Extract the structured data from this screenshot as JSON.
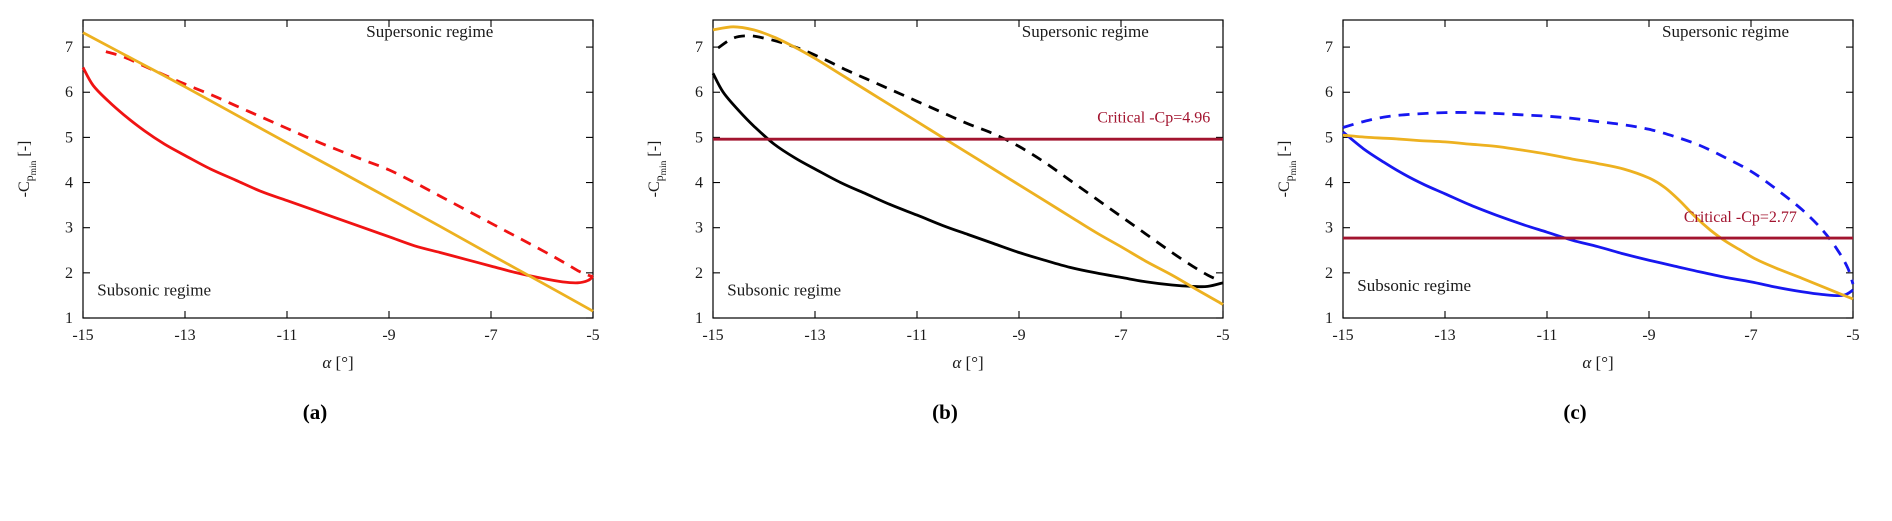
{
  "captions": [
    "(a)",
    "(b)",
    "(c)"
  ],
  "chart_data": [
    {
      "type": "line",
      "panel": "a",
      "xlabel": {
        "variable": "α",
        "unit": " [°]"
      },
      "ylabel": {
        "prefix": "-C",
        "sub": "p",
        "subsub": "min",
        "unit": " [-]"
      },
      "xlim": [
        -15,
        -5
      ],
      "ylim": [
        1,
        7.6
      ],
      "xticks": [
        -15,
        -13,
        -11,
        -9,
        -7,
        -5
      ],
      "yticks": [
        1,
        2,
        3,
        4,
        5,
        6,
        7
      ],
      "annotations": [
        {
          "text": "Supersonic regime",
          "x": -8.2,
          "y": 7.22,
          "anchor": "middle",
          "color": "#1a1a1a"
        },
        {
          "text": "Subsonic regime",
          "x": -14.72,
          "y": 1.5,
          "anchor": "start",
          "color": "#1a1a1a"
        }
      ],
      "critical_line": null,
      "series": [
        {
          "name": "upper-branch-dashed",
          "color": "#F01313",
          "style": "dashed",
          "points": [
            [
              -14.55,
              6.9
            ],
            [
              -14.2,
              6.78
            ],
            [
              -13.8,
              6.58
            ],
            [
              -13.4,
              6.38
            ],
            [
              -13,
              6.18
            ],
            [
              -12.5,
              5.95
            ],
            [
              -12,
              5.7
            ],
            [
              -11.5,
              5.45
            ],
            [
              -11,
              5.2
            ],
            [
              -10.5,
              4.95
            ],
            [
              -10,
              4.72
            ],
            [
              -9.5,
              4.5
            ],
            [
              -9,
              4.28
            ],
            [
              -8.5,
              4.0
            ],
            [
              -8,
              3.7
            ],
            [
              -7.5,
              3.4
            ],
            [
              -7,
              3.1
            ],
            [
              -6.5,
              2.8
            ],
            [
              -6,
              2.5
            ],
            [
              -5.6,
              2.25
            ],
            [
              -5.3,
              2.05
            ],
            [
              -5.1,
              1.95
            ],
            [
              -5,
              1.92
            ]
          ]
        },
        {
          "name": "lower-branch-solid",
          "color": "#F01313",
          "style": "solid",
          "points": [
            [
              -15,
              6.55
            ],
            [
              -14.8,
              6.15
            ],
            [
              -14.5,
              5.8
            ],
            [
              -14.2,
              5.5
            ],
            [
              -13.8,
              5.15
            ],
            [
              -13.4,
              4.85
            ],
            [
              -13,
              4.6
            ],
            [
              -12.5,
              4.3
            ],
            [
              -12,
              4.05
            ],
            [
              -11.5,
              3.8
            ],
            [
              -11,
              3.6
            ],
            [
              -10.5,
              3.4
            ],
            [
              -10,
              3.2
            ],
            [
              -9.5,
              3.0
            ],
            [
              -9,
              2.8
            ],
            [
              -8.5,
              2.6
            ],
            [
              -8,
              2.45
            ],
            [
              -7.5,
              2.3
            ],
            [
              -7,
              2.15
            ],
            [
              -6.5,
              2.0
            ],
            [
              -6,
              1.88
            ],
            [
              -5.6,
              1.8
            ],
            [
              -5.3,
              1.78
            ],
            [
              -5.1,
              1.83
            ],
            [
              -5,
              1.92
            ]
          ]
        },
        {
          "name": "reference-line",
          "color": "#EDB120",
          "style": "solid",
          "points": [
            [
              -15,
              7.32
            ],
            [
              -14,
              6.72
            ],
            [
              -13,
              6.12
            ],
            [
              -12,
              5.5
            ],
            [
              -11,
              4.88
            ],
            [
              -10,
              4.27
            ],
            [
              -9,
              3.65
            ],
            [
              -8,
              3.03
            ],
            [
              -7,
              2.4
            ],
            [
              -6,
              1.78
            ],
            [
              -5,
              1.15
            ]
          ]
        }
      ]
    },
    {
      "type": "line",
      "panel": "b",
      "xlabel": {
        "variable": "α",
        "unit": " [°]"
      },
      "ylabel": {
        "prefix": "-C",
        "sub": "p",
        "subsub": "min",
        "unit": " [-]"
      },
      "xlim": [
        -15,
        -5
      ],
      "ylim": [
        1,
        7.6
      ],
      "xticks": [
        -15,
        -13,
        -11,
        -9,
        -7,
        -5
      ],
      "yticks": [
        1,
        2,
        3,
        4,
        5,
        6,
        7
      ],
      "annotations": [
        {
          "text": "Supersonic regime",
          "x": -7.7,
          "y": 7.22,
          "anchor": "middle",
          "color": "#1a1a1a"
        },
        {
          "text": "Subsonic regime",
          "x": -14.72,
          "y": 1.5,
          "anchor": "start",
          "color": "#1a1a1a"
        }
      ],
      "critical_line": {
        "value": 4.96,
        "label": "Critical -Cp=4.96",
        "color": "#A2142F",
        "label_x": -5.25,
        "label_y": 5.33,
        "label_anchor": "end"
      },
      "series": [
        {
          "name": "upper-branch-dashed",
          "color": "#000000",
          "style": "dashed",
          "points": [
            [
              -14.9,
              6.98
            ],
            [
              -14.6,
              7.2
            ],
            [
              -14.3,
              7.25
            ],
            [
              -14,
              7.2
            ],
            [
              -13.6,
              7.08
            ],
            [
              -13.2,
              6.92
            ],
            [
              -12.8,
              6.72
            ],
            [
              -12.4,
              6.5
            ],
            [
              -12,
              6.3
            ],
            [
              -11.5,
              6.05
            ],
            [
              -11,
              5.8
            ],
            [
              -10.5,
              5.55
            ],
            [
              -10,
              5.3
            ],
            [
              -9.5,
              5.08
            ],
            [
              -9,
              4.8
            ],
            [
              -8.5,
              4.45
            ],
            [
              -8,
              4.05
            ],
            [
              -7.5,
              3.65
            ],
            [
              -7,
              3.25
            ],
            [
              -6.5,
              2.85
            ],
            [
              -6,
              2.45
            ],
            [
              -5.6,
              2.15
            ],
            [
              -5.3,
              1.95
            ],
            [
              -5.05,
              1.82
            ]
          ]
        },
        {
          "name": "lower-branch-solid",
          "color": "#000000",
          "style": "solid",
          "points": [
            [
              -15,
              6.42
            ],
            [
              -14.8,
              6.0
            ],
            [
              -14.5,
              5.6
            ],
            [
              -14.2,
              5.25
            ],
            [
              -13.8,
              4.85
            ],
            [
              -13.4,
              4.55
            ],
            [
              -13,
              4.3
            ],
            [
              -12.5,
              4.0
            ],
            [
              -12,
              3.75
            ],
            [
              -11.5,
              3.5
            ],
            [
              -11,
              3.28
            ],
            [
              -10.5,
              3.05
            ],
            [
              -10,
              2.85
            ],
            [
              -9.5,
              2.65
            ],
            [
              -9,
              2.45
            ],
            [
              -8.5,
              2.28
            ],
            [
              -8,
              2.12
            ],
            [
              -7.5,
              2.0
            ],
            [
              -7,
              1.9
            ],
            [
              -6.5,
              1.8
            ],
            [
              -6,
              1.73
            ],
            [
              -5.6,
              1.7
            ],
            [
              -5.3,
              1.7
            ],
            [
              -5,
              1.78
            ]
          ]
        },
        {
          "name": "reference-line",
          "color": "#EDB120",
          "style": "solid",
          "points": [
            [
              -15,
              7.38
            ],
            [
              -14.6,
              7.45
            ],
            [
              -14.2,
              7.38
            ],
            [
              -13.8,
              7.22
            ],
            [
              -13.4,
              7.0
            ],
            [
              -13,
              6.75
            ],
            [
              -12.5,
              6.4
            ],
            [
              -12,
              6.05
            ],
            [
              -11.5,
              5.7
            ],
            [
              -11,
              5.35
            ],
            [
              -10.5,
              5.0
            ],
            [
              -10,
              4.65
            ],
            [
              -9.5,
              4.3
            ],
            [
              -9,
              3.95
            ],
            [
              -8.5,
              3.6
            ],
            [
              -8,
              3.25
            ],
            [
              -7.5,
              2.9
            ],
            [
              -7,
              2.58
            ],
            [
              -6.5,
              2.25
            ],
            [
              -6,
              1.95
            ],
            [
              -5.5,
              1.62
            ],
            [
              -5,
              1.3
            ]
          ]
        }
      ]
    },
    {
      "type": "line",
      "panel": "c",
      "xlabel": {
        "variable": "α",
        "unit": " [°]"
      },
      "ylabel": {
        "prefix": "-C",
        "sub": "p",
        "subsub": "min",
        "unit": " [-]"
      },
      "xlim": [
        -15,
        -5
      ],
      "ylim": [
        1,
        7.6
      ],
      "xticks": [
        -15,
        -13,
        -11,
        -9,
        -7,
        -5
      ],
      "yticks": [
        1,
        2,
        3,
        4,
        5,
        6,
        7
      ],
      "annotations": [
        {
          "text": "Supersonic regime",
          "x": -7.5,
          "y": 7.22,
          "anchor": "middle",
          "color": "#1a1a1a"
        },
        {
          "text": "Subsonic regime",
          "x": -14.72,
          "y": 1.6,
          "anchor": "start",
          "color": "#1a1a1a"
        }
      ],
      "critical_line": {
        "value": 2.77,
        "label": "Critical -Cp=2.77",
        "color": "#A2142F",
        "label_x": -6.1,
        "label_y": 3.13,
        "label_anchor": "end"
      },
      "series": [
        {
          "name": "upper-branch-dashed",
          "color": "#1717F0",
          "style": "dashed",
          "points": [
            [
              -15,
              5.22
            ],
            [
              -14.6,
              5.35
            ],
            [
              -14.2,
              5.45
            ],
            [
              -13.8,
              5.5
            ],
            [
              -13.4,
              5.53
            ],
            [
              -13,
              5.55
            ],
            [
              -12.5,
              5.55
            ],
            [
              -12,
              5.53
            ],
            [
              -11.5,
              5.5
            ],
            [
              -11,
              5.47
            ],
            [
              -10.5,
              5.42
            ],
            [
              -10,
              5.35
            ],
            [
              -9.5,
              5.28
            ],
            [
              -9,
              5.18
            ],
            [
              -8.5,
              5.02
            ],
            [
              -8,
              4.82
            ],
            [
              -7.5,
              4.55
            ],
            [
              -7,
              4.25
            ],
            [
              -6.5,
              3.85
            ],
            [
              -6,
              3.4
            ],
            [
              -5.6,
              2.95
            ],
            [
              -5.3,
              2.5
            ],
            [
              -5.1,
              2.1
            ],
            [
              -5,
              1.75
            ]
          ]
        },
        {
          "name": "lower-branch-solid",
          "color": "#1717F0",
          "style": "solid",
          "points": [
            [
              -15,
              5.12
            ],
            [
              -14.6,
              4.75
            ],
            [
              -14.2,
              4.45
            ],
            [
              -13.8,
              4.18
            ],
            [
              -13.4,
              3.95
            ],
            [
              -13,
              3.75
            ],
            [
              -12.5,
              3.5
            ],
            [
              -12,
              3.28
            ],
            [
              -11.5,
              3.08
            ],
            [
              -11,
              2.9
            ],
            [
              -10.5,
              2.72
            ],
            [
              -10,
              2.58
            ],
            [
              -9.5,
              2.42
            ],
            [
              -9,
              2.28
            ],
            [
              -8.5,
              2.15
            ],
            [
              -8,
              2.02
            ],
            [
              -7.5,
              1.9
            ],
            [
              -7,
              1.8
            ],
            [
              -6.5,
              1.68
            ],
            [
              -6,
              1.58
            ],
            [
              -5.6,
              1.52
            ],
            [
              -5.2,
              1.5
            ],
            [
              -5,
              1.62
            ]
          ]
        },
        {
          "name": "reference-line",
          "color": "#EDB120",
          "style": "solid",
          "points": [
            [
              -15,
              5.05
            ],
            [
              -14.5,
              5.0
            ],
            [
              -14,
              4.97
            ],
            [
              -13.5,
              4.93
            ],
            [
              -13,
              4.9
            ],
            [
              -12.5,
              4.85
            ],
            [
              -12,
              4.8
            ],
            [
              -11.5,
              4.72
            ],
            [
              -11,
              4.63
            ],
            [
              -10.5,
              4.52
            ],
            [
              -10,
              4.42
            ],
            [
              -9.5,
              4.3
            ],
            [
              -9,
              4.1
            ],
            [
              -8.7,
              3.9
            ],
            [
              -8.4,
              3.6
            ],
            [
              -8.1,
              3.25
            ],
            [
              -7.8,
              2.95
            ],
            [
              -7.5,
              2.7
            ],
            [
              -7.2,
              2.5
            ],
            [
              -6.9,
              2.3
            ],
            [
              -6.5,
              2.1
            ],
            [
              -6,
              1.88
            ],
            [
              -5.5,
              1.65
            ],
            [
              -5,
              1.42
            ]
          ]
        }
      ]
    }
  ]
}
